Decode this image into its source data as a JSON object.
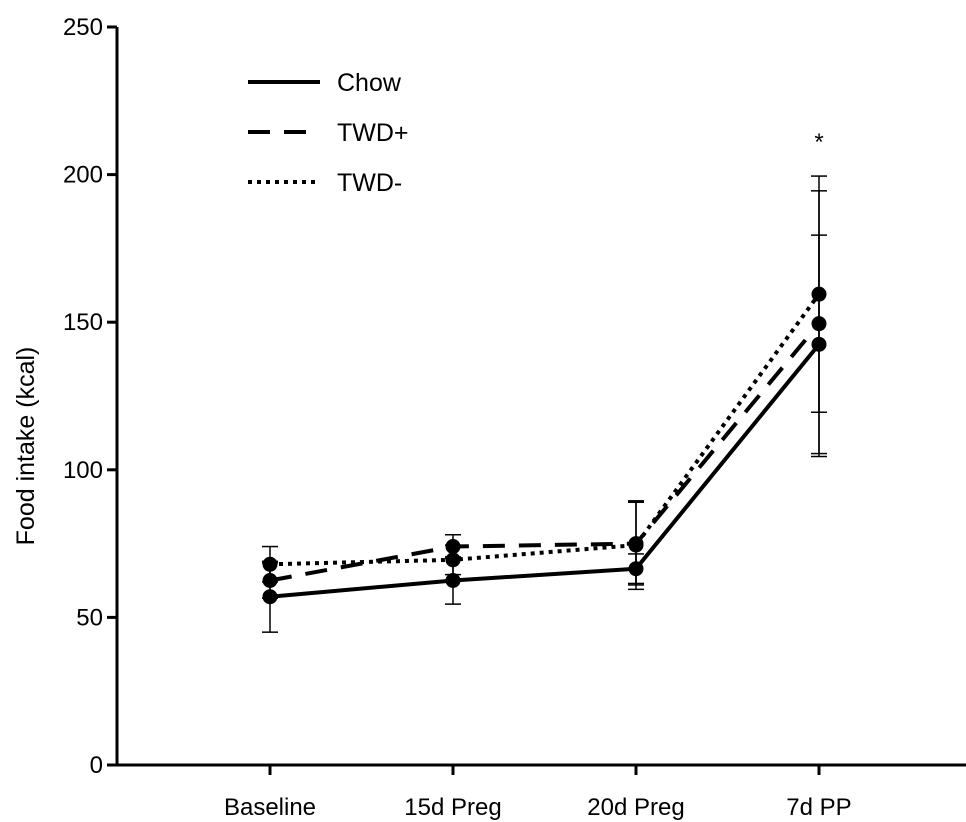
{
  "chart_data": {
    "type": "line",
    "title": "",
    "xlabel": "",
    "ylabel": "Food intake (kcal)",
    "categories": [
      "Baseline",
      "15d Preg",
      "20d Preg",
      "7d PP"
    ],
    "ylim": [
      0,
      250
    ],
    "yticks": [
      0,
      50,
      100,
      150,
      200,
      250
    ],
    "grid": false,
    "legend_position": "top-left",
    "series": [
      {
        "name": "Chow",
        "line_style": "solid",
        "values": [
          57,
          62.5,
          66.5,
          142.5
        ],
        "error": [
          12,
          8,
          5,
          37
        ]
      },
      {
        "name": "TWD+",
        "line_style": "dashed",
        "values": [
          62.5,
          74,
          75,
          149.5
        ],
        "error": [
          6,
          4,
          14,
          45
        ]
      },
      {
        "name": "TWD-",
        "line_style": "dotted",
        "values": [
          68,
          69.5,
          74.5,
          159.5
        ],
        "error": [
          6,
          5,
          15,
          40
        ]
      }
    ],
    "annotations": [
      {
        "text": "*",
        "category": "7d PP"
      }
    ],
    "color": "#000000"
  }
}
